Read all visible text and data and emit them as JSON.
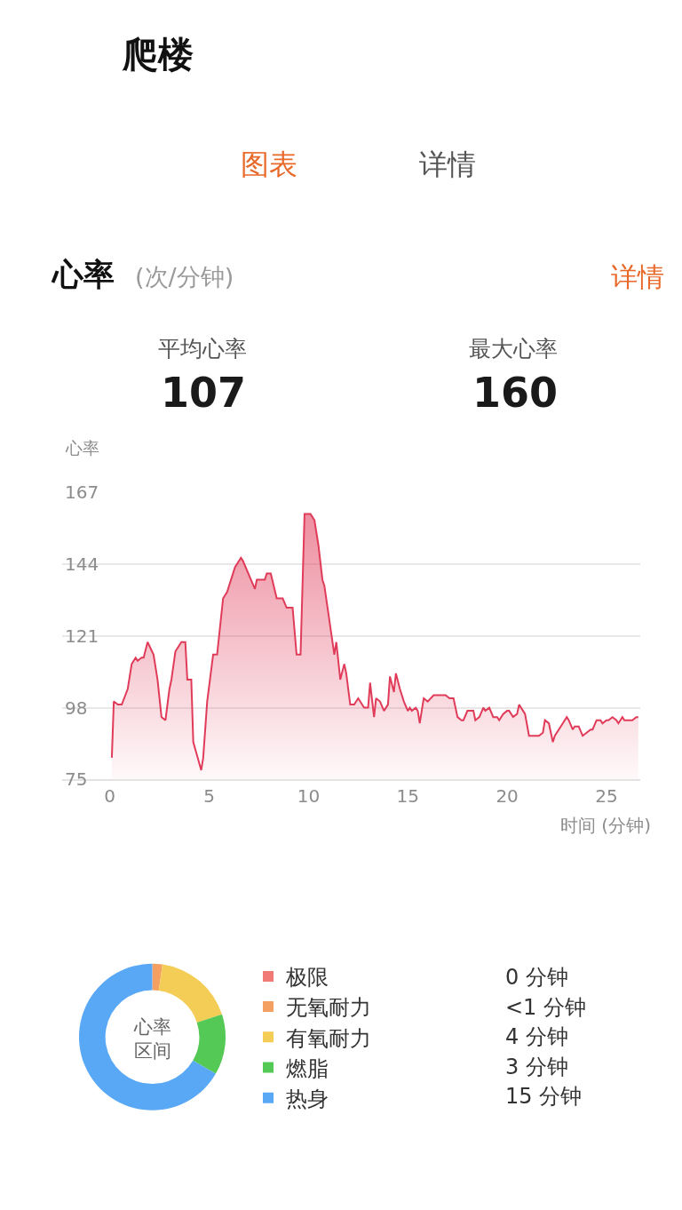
{
  "chart_data": [
    {
      "type": "other",
      "title": "爬楼",
      "annotations": [
        "图表",
        "详情"
      ]
    },
    {
      "type": "area",
      "title": "心率",
      "subtitle": "(次/分钟)",
      "ylabel": "心率",
      "xlabel": "时间 (分钟)",
      "annotations": [
        "详情",
        "平均心率",
        "107",
        "最大心率",
        "160"
      ],
      "x": [
        0.1,
        0.2,
        0.4,
        0.6,
        0.9,
        1.1,
        1.3,
        1.4,
        1.6,
        1.7,
        1.9,
        2.2,
        2.4,
        2.6,
        2.8,
        3.0,
        3.1,
        3.3,
        3.4,
        3.6,
        3.8,
        3.9,
        4.1,
        4.2,
        4.6,
        4.7,
        4.9,
        5.2,
        5.4,
        5.7,
        5.9,
        6.3,
        6.6,
        6.7,
        7.3,
        7.4,
        7.8,
        7.9,
        8.1,
        8.4,
        8.7,
        8.9,
        9.2,
        9.4,
        9.6,
        9.8,
        10.1,
        10.3,
        10.5,
        10.7,
        10.8,
        11.3,
        11.4,
        11.6,
        11.8,
        11.9,
        12.1,
        12.3,
        12.5,
        12.7,
        12.8,
        13.0,
        13.1,
        13.3,
        13.4,
        13.6,
        13.8,
        14.0,
        14.1,
        14.3,
        14.4,
        14.6,
        14.8,
        15.0,
        15.1,
        15.2,
        15.4,
        15.5,
        15.6,
        15.8,
        16.0,
        16.3,
        16.9,
        17.1,
        17.3,
        17.5,
        17.7,
        17.8,
        18.0,
        18.3,
        18.4,
        18.6,
        18.8,
        18.9,
        19.1,
        19.3,
        19.5,
        19.6,
        19.8,
        20.0,
        20.1,
        20.3,
        20.5,
        20.6,
        20.8,
        20.9,
        21.1,
        21.2,
        21.4,
        21.6,
        21.8,
        21.9,
        22.1,
        22.3,
        22.4,
        22.7,
        23.0,
        23.1,
        23.3,
        23.4,
        23.6,
        23.8,
        24.0,
        24.2,
        24.3,
        24.5,
        24.7,
        24.8,
        25.0,
        25.1,
        25.3,
        25.5,
        25.6,
        25.8,
        25.9,
        26.3,
        26.5,
        26.6
      ],
      "series": [
        {
          "color": "#e03c5a",
          "values": [
            82,
            100,
            99,
            99,
            104,
            112,
            114,
            113,
            114,
            114,
            119,
            115,
            107,
            95,
            94,
            104,
            107,
            116,
            117,
            119,
            119,
            107,
            107,
            87,
            78,
            82,
            100,
            115,
            115,
            133,
            135,
            143,
            146,
            145,
            136,
            139,
            139,
            141,
            141,
            133,
            133,
            130,
            130,
            115,
            115,
            160,
            160,
            158,
            150,
            139,
            137,
            115,
            119,
            107,
            112,
            109,
            99,
            99,
            101,
            99,
            98,
            98,
            106,
            95,
            101,
            100,
            97,
            99,
            108,
            103,
            109,
            104,
            100,
            97,
            98,
            97,
            98,
            97,
            93,
            101,
            100,
            102,
            102,
            101,
            101,
            95,
            94,
            94,
            97,
            97,
            94,
            95,
            98,
            97,
            98,
            95,
            95,
            94,
            96,
            97,
            97,
            95,
            96,
            99,
            97,
            96,
            89,
            89,
            89,
            89,
            90,
            94,
            93,
            87,
            89,
            92,
            95,
            94,
            91,
            92,
            92,
            89,
            90,
            91,
            91,
            94,
            94,
            93,
            94,
            94,
            95,
            94,
            93,
            95,
            94,
            94,
            95,
            95
          ]
        }
      ],
      "xlim": [
        -2.4,
        26.7
      ],
      "xticks": [
        0,
        5,
        10,
        15,
        20,
        25
      ],
      "ylim": [
        75,
        167
      ],
      "yticks": [
        75,
        98,
        121,
        144,
        167
      ],
      "grid": "y"
    },
    {
      "type": "donut",
      "title": "心率区间",
      "categories": [
        "极限",
        "无氧耐力",
        "有氧耐力",
        "燃脂",
        "热身"
      ],
      "values": [
        0,
        0.5,
        4,
        3,
        15
      ],
      "colors": [
        "#f27a76",
        "#f5a063",
        "#f3cd55",
        "#55c955",
        "#58a8f5"
      ],
      "value_labels": [
        "0 分钟",
        "<1 分钟",
        "4 分钟",
        "3 分钟",
        "15 分钟"
      ],
      "legend": "right"
    }
  ]
}
